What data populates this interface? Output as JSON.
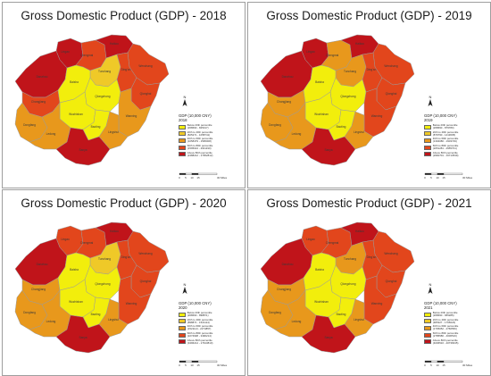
{
  "colors": {
    "c1": "#f2ee0c",
    "c2": "#efc928",
    "c3": "#e8981c",
    "c4": "#e2461c",
    "c5": "#c0141a"
  },
  "panels": [
    {
      "title": "Gross Domestic Product (GDP) - 2018",
      "legend_title": "GDP (10,000 CNY)",
      "legend_year": "2018",
      "legend": [
        {
          "label": "Below 20th percentile",
          "range": "(268690 - 825017)"
        },
        {
          "label": "20th to 40th percentile",
          "range": "(825271 - 1058741)"
        },
        {
          "label": "40th to 60th percentile",
          "range": "(1058479 - 1595008)"
        },
        {
          "label": "60th to 80th percentile",
          "range": "(1595024 - 2641190)"
        },
        {
          "label": "Above 80th percentile",
          "range": "(2488212 - 17952812)"
        }
      ],
      "fills": {
        "Lingao": "c5",
        "Chengmai": "c4",
        "Haikou": "c5",
        "Wenchang": "c4",
        "Danzhou": "c5",
        "Tunchang": "c2",
        "Dingan": "c4",
        "Qionghai": "c4",
        "Changjiang": "c4",
        "Baisha": "c1",
        "Qiongzhong": "c1",
        "Wanning": "c3",
        "Dongfang": "c3",
        "Wuzhishan": "c1",
        "Ledong": "c3",
        "Baoting": "c1",
        "Lingshui": "c3",
        "Sanya": "c5"
      }
    },
    {
      "title": "Gross Domestic Product (GDP) - 2019",
      "legend_title": "GDP (10,000 CNY)",
      "legend_year": "2019",
      "legend": [
        {
          "label": "Below 20th percentile",
          "range": "(268690 - 879780)"
        },
        {
          "label": "20th to 40th percentile",
          "range": "(879790 - 1413605)"
        },
        {
          "label": "40th to 60th percentile",
          "range": "(1394080 - 1903749)"
        },
        {
          "label": "60th to 80th percentile",
          "range": "(2051281 - 2955701)"
        },
        {
          "label": "Above 80th percentile",
          "range": "(2960701 - 16713539)"
        }
      ],
      "fills": {
        "Lingao": "c5",
        "Chengmai": "c3",
        "Haikou": "c5",
        "Wenchang": "c4",
        "Danzhou": "c5",
        "Tunchang": "c3",
        "Dingan": "c4",
        "Qionghai": "c4",
        "Changjiang": "c3",
        "Baisha": "c1",
        "Qiongzhong": "c1",
        "Wanning": "c4",
        "Dongfang": "c3",
        "Wuzhishan": "c1",
        "Ledong": "c3",
        "Baoting": "c1",
        "Lingshui": "c3",
        "Sanya": "c5"
      }
    },
    {
      "title": "Gross Domestic Product (GDP) - 2020",
      "legend_title": "GDP (10,000 CNY)",
      "legend_year": "2020",
      "legend": [
        {
          "label": "Below 20th percentile",
          "range": "(268690 - 898871)"
        },
        {
          "label": "20th to 40th percentile",
          "range": "(898871 - 1521114)"
        },
        {
          "label": "40th to 60th percentile",
          "range": "(1521114 - 2274857)"
        },
        {
          "label": "60th to 80th percentile",
          "range": "(2274938 - 3496214)"
        },
        {
          "label": "Above 80th percentile",
          "range": "(3496214 - 17913810)"
        }
      ],
      "fills": {
        "Lingao": "c4",
        "Chengmai": "c4",
        "Haikou": "c5",
        "Wenchang": "c4",
        "Danzhou": "c5",
        "Tunchang": "c2",
        "Dingan": "c4",
        "Qionghai": "c4",
        "Changjiang": "c3",
        "Baisha": "c1",
        "Qiongzhong": "c1",
        "Wanning": "c4",
        "Dongfang": "c3",
        "Wuzhishan": "c1",
        "Ledong": "c3",
        "Baoting": "c1",
        "Lingshui": "c3",
        "Sanya": "c5"
      }
    },
    {
      "title": "Gross Domestic Product (GDP) - 2021",
      "legend_title": "GDP (10,000 CNY)",
      "legend_year": "2021",
      "legend": [
        {
          "label": "Below 20th percentile",
          "range": "(268690 - 965285)"
        },
        {
          "label": "20th to 40th percentile",
          "range": "(965327 - 1705023)"
        },
        {
          "label": "40th to 60th percentile",
          "range": "(1705052 - 2766556)"
        },
        {
          "label": "60th to 80th percentile",
          "range": "(2785580 - 4006516)"
        },
        {
          "label": "Above 80th percentile",
          "range": "(4006516 - 20736645)"
        }
      ],
      "fills": {
        "Lingao": "c4",
        "Chengmai": "c4",
        "Haikou": "c5",
        "Wenchang": "c4",
        "Danzhou": "c5",
        "Tunchang": "c3",
        "Dingan": "c4",
        "Qionghai": "c4",
        "Changjiang": "c3",
        "Baisha": "c1",
        "Qiongzhong": "c1",
        "Wanning": "c4",
        "Dongfang": "c3",
        "Wuzhishan": "c1",
        "Ledong": "c3",
        "Baoting": "c1",
        "Lingshui": "c3",
        "Sanya": "c5"
      }
    }
  ],
  "region_names": {
    "Lingao": "Lingao",
    "Chengmai": "Chengmai",
    "Haikou": "Haikou",
    "Wenchang": "Wenchang",
    "Danzhou": "Danzhou",
    "Tunchang": "Tunchang",
    "Dingan": "Ding'an",
    "Qionghai": "Qionghai",
    "Changjiang": "Changjiang",
    "Baisha": "Baisha",
    "Qiongzhong": "Qiongzhong",
    "Wanning": "Wanning",
    "Dongfang": "Dongfang",
    "Wuzhishan": "Wuzhishan",
    "Ledong": "Ledong",
    "Baoting": "Baoting",
    "Lingshui": "Lingshui",
    "Sanya": "Sanya"
  },
  "north_label": "N",
  "scale_labels": [
    "0",
    "5",
    "10",
    "15",
    "30 Miles"
  ]
}
